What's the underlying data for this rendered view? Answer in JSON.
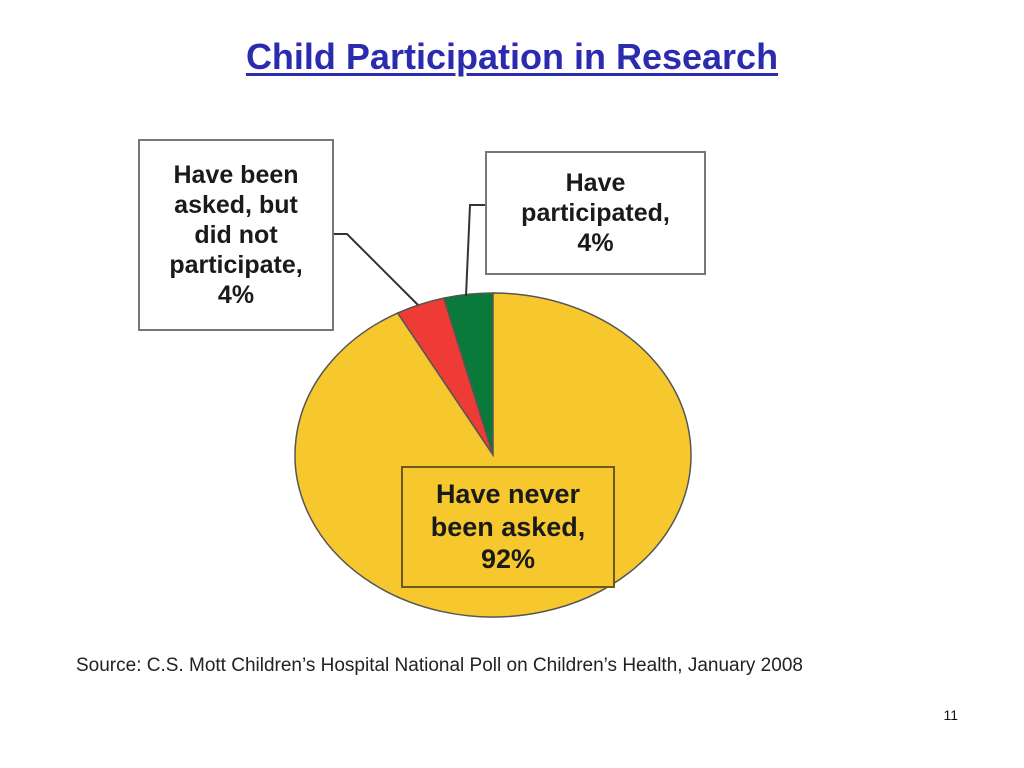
{
  "slide": {
    "title": "Child Participation in Research",
    "source": "Source: C.S. Mott Children’s Hospital National Poll on Children’s Health, January 2008",
    "page_number": "11"
  },
  "chart_data": {
    "type": "pie",
    "start_angle_deg": 0,
    "direction": "counterclockwise",
    "slices": [
      {
        "label": "Have participated, 4%",
        "value": 4,
        "color": "#0a7a3a"
      },
      {
        "label": "Have been asked, but did not participate, 4%",
        "value": 4,
        "color": "#ef3b36"
      },
      {
        "label": "Have never been asked, 92%",
        "value": 92,
        "color": "#f7c82e"
      }
    ],
    "labels": {
      "participated": "Have participated, 4%",
      "asked_not_participated": "Have been asked, but did not participate, 4%",
      "never_asked": "Have never been asked, 92%"
    },
    "outline_color": "#555555",
    "label_fill_never": "#f7c82e"
  }
}
